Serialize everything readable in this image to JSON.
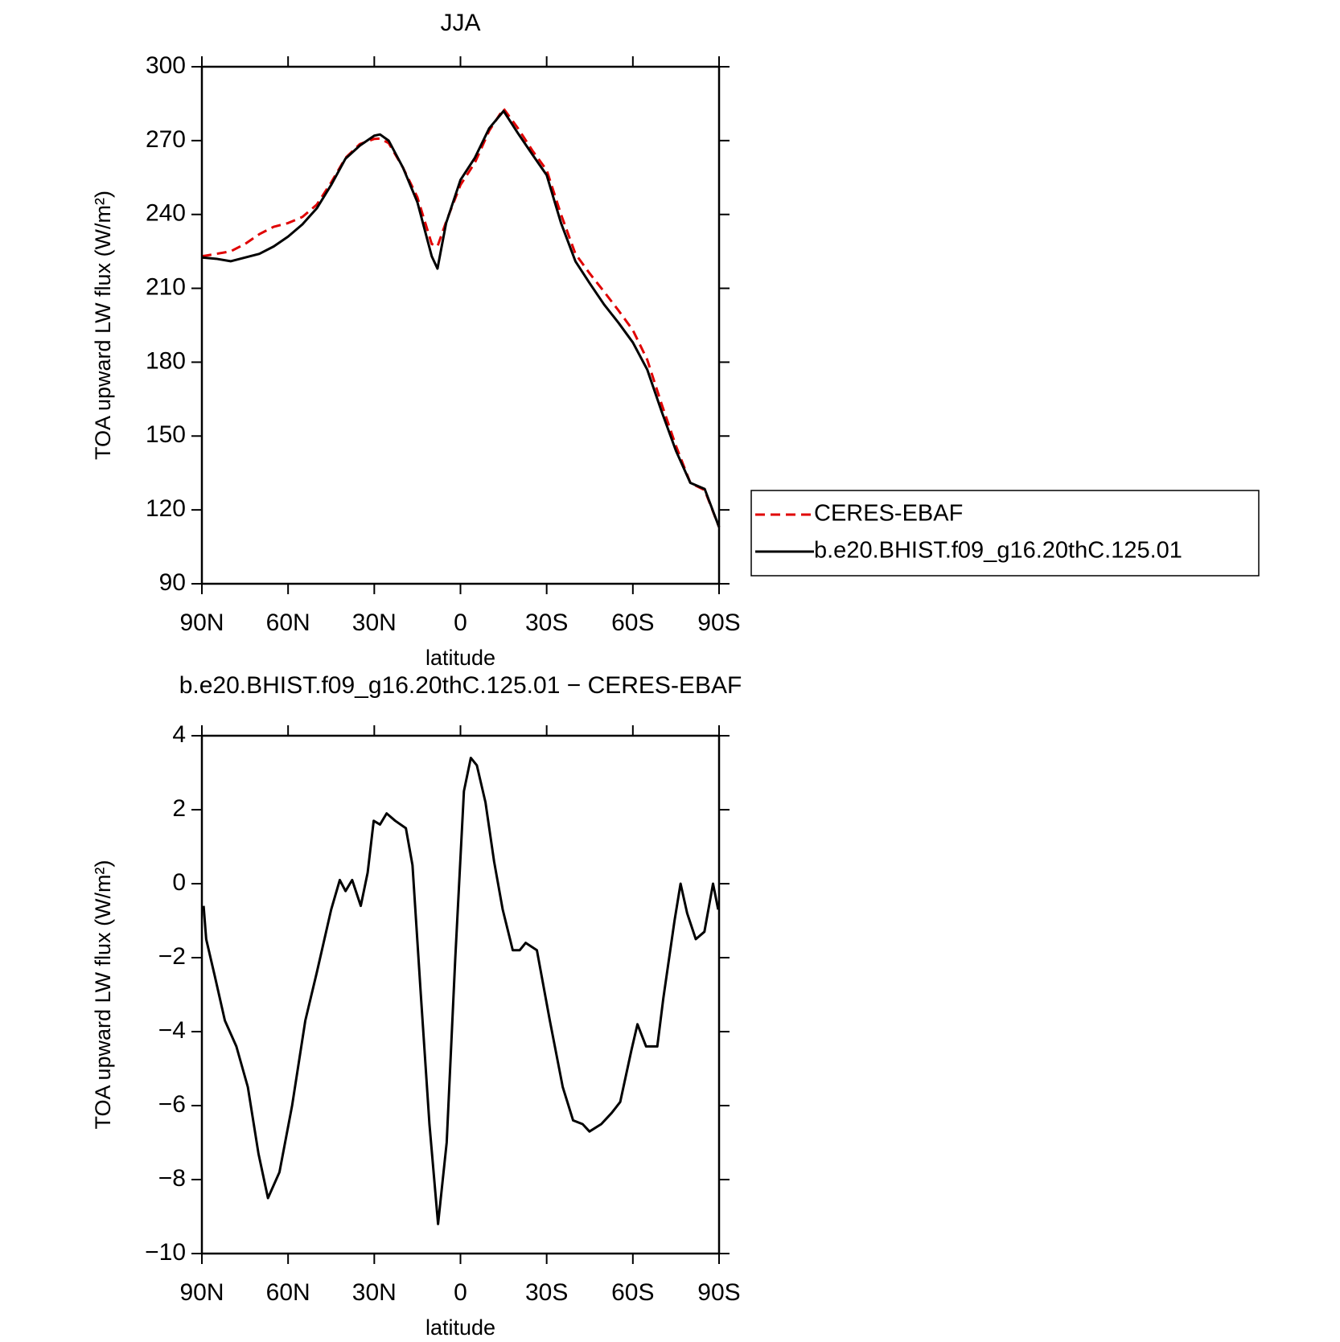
{
  "chart_data": [
    {
      "type": "line",
      "title": "JJA",
      "xlabel": "latitude",
      "ylabel": "TOA upward LW flux (W/m²)",
      "x": [
        90,
        85,
        80,
        75,
        70,
        65,
        60,
        55,
        50,
        45,
        40,
        35,
        30,
        28,
        25,
        20,
        15,
        10,
        8,
        5,
        0,
        -5,
        -10,
        -15,
        -20,
        -25,
        -30,
        -35,
        -40,
        -45,
        -50,
        -55,
        -60,
        -65,
        -70,
        -75,
        -80,
        -85,
        -90
      ],
      "series": [
        {
          "name": "CERES-EBAF",
          "color": "#e00000",
          "dash": true,
          "values": [
            223,
            224,
            225,
            228,
            232,
            235,
            236.5,
            239,
            244,
            253,
            263,
            268.6,
            270.7,
            270.8,
            269,
            259,
            247,
            228,
            227,
            237,
            252,
            261,
            274,
            283,
            275,
            266,
            258,
            240,
            224,
            216,
            208.6,
            201,
            193,
            181,
            163,
            146,
            131,
            128,
            113
          ]
        },
        {
          "name": "b.e20.BHIST.f09_g16.20thC.125.01",
          "color": "#000000",
          "dash": false,
          "values": [
            222.5,
            222,
            221,
            222.5,
            224,
            227,
            231,
            236,
            242.5,
            252,
            262.7,
            268,
            272,
            272.5,
            270,
            259,
            245,
            223,
            218,
            236.5,
            254,
            263,
            275,
            282,
            273,
            264.4,
            256,
            236.5,
            221,
            212,
            203.4,
            196,
            188,
            177,
            160,
            144,
            131,
            128.5,
            113
          ]
        }
      ],
      "xlim": [
        90,
        -90
      ],
      "xticks": [
        {
          "value": 90,
          "label": "90N"
        },
        {
          "value": 60,
          "label": "60N"
        },
        {
          "value": 30,
          "label": "30N"
        },
        0,
        {
          "value": -30,
          "label": "30S"
        },
        {
          "value": -60,
          "label": "60S"
        },
        {
          "value": -90,
          "label": "90S"
        }
      ],
      "ylim": [
        90,
        300
      ],
      "yticks": [
        90,
        120,
        150,
        180,
        210,
        240,
        270,
        300
      ],
      "legend": "right"
    },
    {
      "type": "line",
      "title": "b.e20.BHIST.f09_g16.20thC.125.01 − CERES-EBAF",
      "xlabel": "latitude",
      "ylabel": "TOA upward LW flux (W/m²)",
      "x": [
        89.4,
        88.5,
        85.5,
        82,
        78,
        74,
        70.3,
        67,
        63,
        58.6,
        54,
        50,
        45,
        42,
        40,
        37.7,
        34.7,
        32.3,
        30.2,
        28,
        25.7,
        22.7,
        19,
        16.7,
        13.8,
        10.8,
        7.8,
        4.8,
        1.8,
        -1.2,
        -3.6,
        -5.7,
        -8.7,
        -11.7,
        -14.7,
        -18.2,
        -20.6,
        -22.7,
        -26.6,
        -31.1,
        -35.6,
        -39.2,
        -42.5,
        -44.9,
        -49,
        -52.6,
        -55.6,
        -59.5,
        -61.6,
        -64.6,
        -68.5,
        -70.6,
        -74.5,
        -76.6,
        -78.9,
        -81.9,
        -84.9,
        -87.9,
        -89.7
      ],
      "series": [
        {
          "color": "#000000",
          "dash": false,
          "values": [
            -0.6,
            -1.5,
            -2.5,
            -3.7,
            -4.4,
            -5.5,
            -7.3,
            -8.5,
            -7.8,
            -6,
            -3.7,
            -2.4,
            -0.7,
            0.1,
            -0.2,
            0.1,
            -0.6,
            0.3,
            1.7,
            1.6,
            1.9,
            1.7,
            1.5,
            0.5,
            -3,
            -6.5,
            -9.2,
            -7,
            -2,
            2.5,
            3.4,
            3.2,
            2.2,
            0.6,
            -0.7,
            -1.8,
            -1.8,
            -1.6,
            -1.8,
            -3.7,
            -5.5,
            -6.4,
            -6.5,
            -6.7,
            -6.5,
            -6.2,
            -5.9,
            -4.5,
            -3.8,
            -4.4,
            -4.4,
            -3.1,
            -1,
            0,
            -0.8,
            -1.5,
            -1.3,
            0,
            -0.7
          ]
        }
      ],
      "xlim": [
        90,
        -90
      ],
      "xticks": [
        {
          "value": 90,
          "label": "90N"
        },
        {
          "value": 60,
          "label": "60N"
        },
        {
          "value": 30,
          "label": "30N"
        },
        0,
        {
          "value": -30,
          "label": "30S"
        },
        {
          "value": -60,
          "label": "60S"
        },
        {
          "value": -90,
          "label": "90S"
        }
      ],
      "ylim": [
        -10,
        4
      ],
      "yticks": [
        {
          "value": -10,
          "label": "−10"
        },
        {
          "value": -8,
          "label": "−8"
        },
        {
          "value": -6,
          "label": "−6"
        },
        {
          "value": -4,
          "label": "−4"
        },
        {
          "value": -2,
          "label": "−2"
        },
        0,
        2,
        4
      ]
    }
  ]
}
